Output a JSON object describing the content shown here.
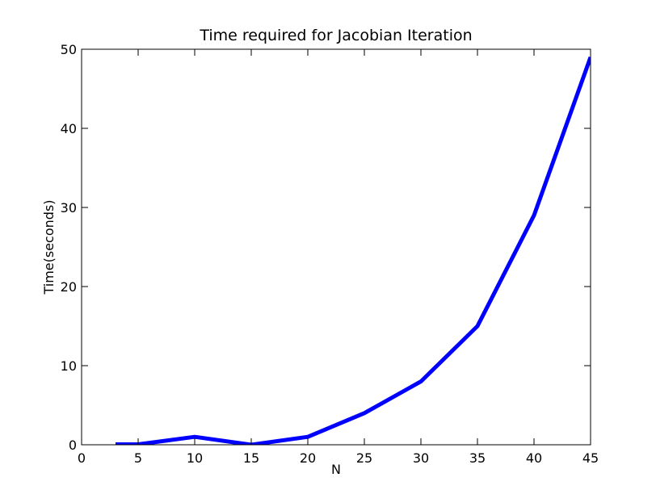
{
  "chart_data": {
    "type": "line",
    "title": "Time required for Jacobian Iteration",
    "xlabel": "N",
    "ylabel": "Time(seconds)",
    "xlim": [
      0,
      45
    ],
    "ylim": [
      0,
      50
    ],
    "xticks": [
      0,
      5,
      10,
      15,
      20,
      25,
      30,
      35,
      40,
      45
    ],
    "yticks": [
      0,
      10,
      20,
      30,
      40,
      50
    ],
    "grid": false,
    "series": [
      {
        "color": "#0000ff",
        "x": [
          3,
          5,
          10,
          15,
          20,
          25,
          30,
          35,
          40,
          45
        ],
        "y": [
          0.05,
          0.05,
          1.0,
          0.0,
          1.0,
          4.0,
          8.0,
          15.0,
          29.0,
          49.0
        ]
      }
    ]
  }
}
